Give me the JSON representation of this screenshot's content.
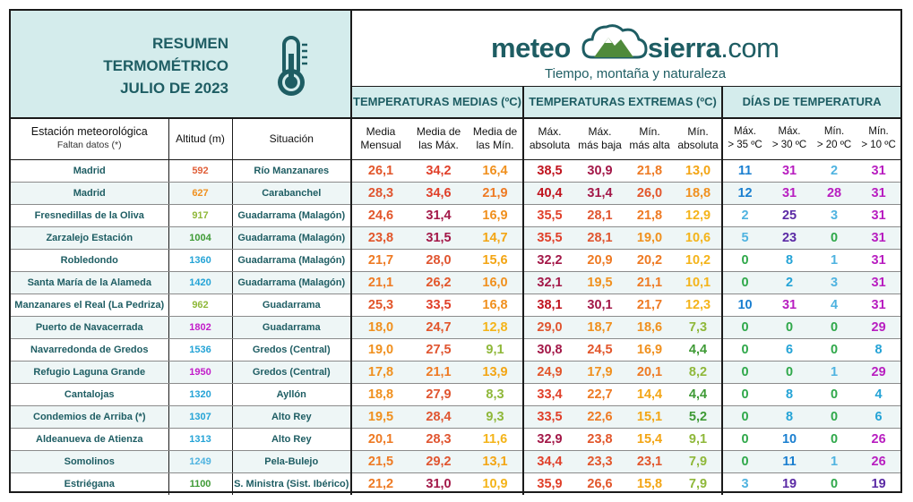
{
  "header": {
    "title_line1": "RESUMEN",
    "title_line2": "TERMOMÉTRICO",
    "title_line3": "JULIO DE 2023",
    "logo_part1": "meteo",
    "logo_part2": "sierra",
    "logo_part3": ".com",
    "tagline": "Tiempo, montaña y naturaleza"
  },
  "groups": {
    "medias": "TEMPERATURAS MEDIAS (ºC)",
    "extremas": "TEMPERATURAS EXTREMAS (ºC)",
    "dias": "DÍAS DE TEMPERATURA"
  },
  "columns": {
    "station_title": "Estación meteorológica",
    "station_note": "Faltan datos (*)",
    "altitude": "Altitud (m)",
    "situation": "Situación",
    "media_mensual": [
      "Media",
      "Mensual"
    ],
    "media_max": [
      "Media de",
      "las Máx."
    ],
    "media_min": [
      "Media de",
      "las Mín."
    ],
    "max_abs": [
      "Máx.",
      "absoluta"
    ],
    "max_baja": [
      "Máx.",
      "más baja"
    ],
    "min_alta": [
      "Mín.",
      "más alta"
    ],
    "min_abs": [
      "Mín.",
      "absoluta"
    ],
    "d35": [
      "Máx.",
      "> 35 ºC"
    ],
    "d30": [
      "Máx.",
      "> 30 ºC"
    ],
    "d20": [
      "Mín.",
      "> 20 ºC"
    ],
    "d10": [
      "Mín.",
      "> 10 ºC"
    ]
  },
  "colors": {
    "accent": "#1e5d63",
    "header_bg": "#d4ecec",
    "alt_row": "#eef6f6",
    "logo_green": "#4f8a3a"
  },
  "rows": [
    {
      "station": "Madrid",
      "alt": "592",
      "sit": "Río Manzanares",
      "mm": "26,1",
      "mx": "34,2",
      "mn": "16,4",
      "xa": "38,5",
      "xb": "30,9",
      "na": "21,8",
      "nb": "13,0",
      "d35": "11",
      "d30": "31",
      "d20": "2",
      "d10": "31"
    },
    {
      "station": "Madrid",
      "alt": "627",
      "sit": "Carabanchel",
      "mm": "28,3",
      "mx": "34,6",
      "mn": "21,9",
      "xa": "40,4",
      "xb": "31,4",
      "na": "26,0",
      "nb": "18,8",
      "d35": "12",
      "d30": "31",
      "d20": "28",
      "d10": "31"
    },
    {
      "station": "Fresnedillas de la Oliva",
      "alt": "917",
      "sit": "Guadarrama (Malagón)",
      "mm": "24,6",
      "mx": "31,4",
      "mn": "16,9",
      "xa": "35,5",
      "xb": "28,1",
      "na": "21,8",
      "nb": "12,9",
      "d35": "2",
      "d30": "25",
      "d20": "3",
      "d10": "31"
    },
    {
      "station": "Zarzalejo Estación",
      "alt": "1004",
      "sit": "Guadarrama (Malagón)",
      "mm": "23,8",
      "mx": "31,5",
      "mn": "14,7",
      "xa": "35,5",
      "xb": "28,1",
      "na": "19,0",
      "nb": "10,6",
      "d35": "5",
      "d30": "23",
      "d20": "0",
      "d10": "31"
    },
    {
      "station": "Robledondo",
      "alt": "1360",
      "sit": "Guadarrama (Malagón)",
      "mm": "21,7",
      "mx": "28,0",
      "mn": "15,6",
      "xa": "32,2",
      "xb": "20,9",
      "na": "20,2",
      "nb": "10,2",
      "d35": "0",
      "d30": "8",
      "d20": "1",
      "d10": "31"
    },
    {
      "station": "Santa María de la Alameda",
      "alt": "1420",
      "sit": "Guadarrama (Malagón)",
      "mm": "21,1",
      "mx": "26,2",
      "mn": "16,0",
      "xa": "32,1",
      "xb": "19,5",
      "na": "21,1",
      "nb": "10,1",
      "d35": "0",
      "d30": "2",
      "d20": "3",
      "d10": "31"
    },
    {
      "station": "Manzanares el Real (La Pedriza)",
      "alt": "962",
      "sit": "Guadarrama",
      "mm": "25,3",
      "mx": "33,5",
      "mn": "16,8",
      "xa": "38,1",
      "xb": "30,1",
      "na": "21,7",
      "nb": "12,3",
      "d35": "10",
      "d30": "31",
      "d20": "4",
      "d10": "31"
    },
    {
      "station": "Puerto de Navacerrada",
      "alt": "1802",
      "sit": "Guadarrama",
      "mm": "18,0",
      "mx": "24,7",
      "mn": "12,8",
      "xa": "29,0",
      "xb": "18,7",
      "na": "18,6",
      "nb": "7,3",
      "d35": "0",
      "d30": "0",
      "d20": "0",
      "d10": "29"
    },
    {
      "station": "Navarredonda de Gredos",
      "alt": "1536",
      "sit": "Gredos (Central)",
      "mm": "19,0",
      "mx": "27,5",
      "mn": "9,1",
      "xa": "30,8",
      "xb": "24,5",
      "na": "16,9",
      "nb": "4,4",
      "d35": "0",
      "d30": "6",
      "d20": "0",
      "d10": "8"
    },
    {
      "station": "Refugio Laguna Grande",
      "alt": "1950",
      "sit": "Gredos (Central)",
      "mm": "17,8",
      "mx": "21,1",
      "mn": "13,9",
      "xa": "24,9",
      "xb": "17,9",
      "na": "20,1",
      "nb": "8,2",
      "d35": "0",
      "d30": "0",
      "d20": "1",
      "d10": "29"
    },
    {
      "station": "Cantalojas",
      "alt": "1320",
      "sit": "Ayllón",
      "mm": "18,8",
      "mx": "27,9",
      "mn": "8,3",
      "xa": "33,4",
      "xb": "22,7",
      "na": "14,4",
      "nb": "4,4",
      "d35": "0",
      "d30": "8",
      "d20": "0",
      "d10": "4"
    },
    {
      "station": "Condemios de Arriba (*)",
      "alt": "1307",
      "sit": "Alto Rey",
      "mm": "19,5",
      "mx": "28,4",
      "mn": "9,3",
      "xa": "33,5",
      "xb": "22,6",
      "na": "15,1",
      "nb": "5,2",
      "d35": "0",
      "d30": "8",
      "d20": "0",
      "d10": "6"
    },
    {
      "station": "Aldeanueva de Atienza",
      "alt": "1313",
      "sit": "Alto Rey",
      "mm": "20,1",
      "mx": "28,3",
      "mn": "11,6",
      "xa": "32,9",
      "xb": "23,8",
      "na": "15,4",
      "nb": "9,1",
      "d35": "0",
      "d30": "10",
      "d20": "0",
      "d10": "26"
    },
    {
      "station": "Somolinos",
      "alt": "1249",
      "sit": "Pela-Bulejo",
      "mm": "21,5",
      "mx": "29,2",
      "mn": "13,1",
      "xa": "34,4",
      "xb": "23,3",
      "na": "23,1",
      "nb": "7,9",
      "d35": "0",
      "d30": "11",
      "d20": "1",
      "d10": "26"
    },
    {
      "station": "Estriégana",
      "alt": "1100",
      "sit": "S. Ministra (Sist. Ibérico)",
      "mm": "21,2",
      "mx": "31,0",
      "mn": "10,9",
      "xa": "35,9",
      "xb": "26,6",
      "na": "15,8",
      "nb": "7,9",
      "d35": "3",
      "d30": "19",
      "d20": "0",
      "d10": "19"
    }
  ]
}
